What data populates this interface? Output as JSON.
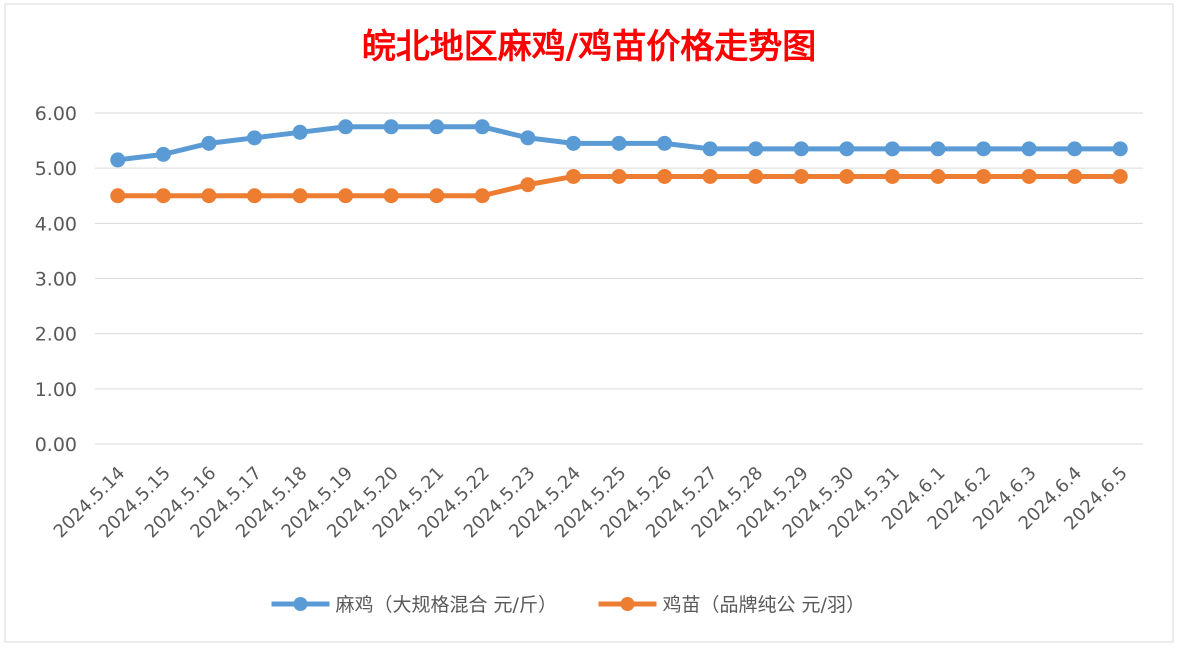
{
  "chart_data": {
    "type": "line",
    "title": "皖北地区麻鸡/鸡苗价格走势图",
    "categories": [
      "2024.5.14",
      "2024.5.15",
      "2024.5.16",
      "2024.5.17",
      "2024.5.18",
      "2024.5.19",
      "2024.5.20",
      "2024.5.21",
      "2024.5.22",
      "2024.5.23",
      "2024.5.24",
      "2024.5.25",
      "2024.5.26",
      "2024.5.27",
      "2024.5.28",
      "2024.5.29",
      "2024.5.30",
      "2024.5.31",
      "2024.6.1",
      "2024.6.2",
      "2024.6.3",
      "2024.6.4",
      "2024.6.5"
    ],
    "series": [
      {
        "name": "麻鸡（大规格混合 元/斤）",
        "color": "#5b9bd5",
        "values": [
          5.15,
          5.25,
          5.45,
          5.55,
          5.65,
          5.75,
          5.75,
          5.75,
          5.75,
          5.55,
          5.45,
          5.45,
          5.45,
          5.35,
          5.35,
          5.35,
          5.35,
          5.35,
          5.35,
          5.35,
          5.35,
          5.35,
          5.35
        ]
      },
      {
        "name": "鸡苗（品牌纯公 元/羽）",
        "color": "#ed7d31",
        "values": [
          4.5,
          4.5,
          4.5,
          4.5,
          4.5,
          4.5,
          4.5,
          4.5,
          4.5,
          4.7,
          4.85,
          4.85,
          4.85,
          4.85,
          4.85,
          4.85,
          4.85,
          4.85,
          4.85,
          4.85,
          4.85,
          4.85,
          4.85
        ]
      }
    ],
    "yticks": [
      "0.00",
      "1.00",
      "2.00",
      "3.00",
      "4.00",
      "5.00",
      "6.00"
    ],
    "ylim": [
      0,
      6
    ],
    "grid": true,
    "legend_position": "bottom"
  }
}
